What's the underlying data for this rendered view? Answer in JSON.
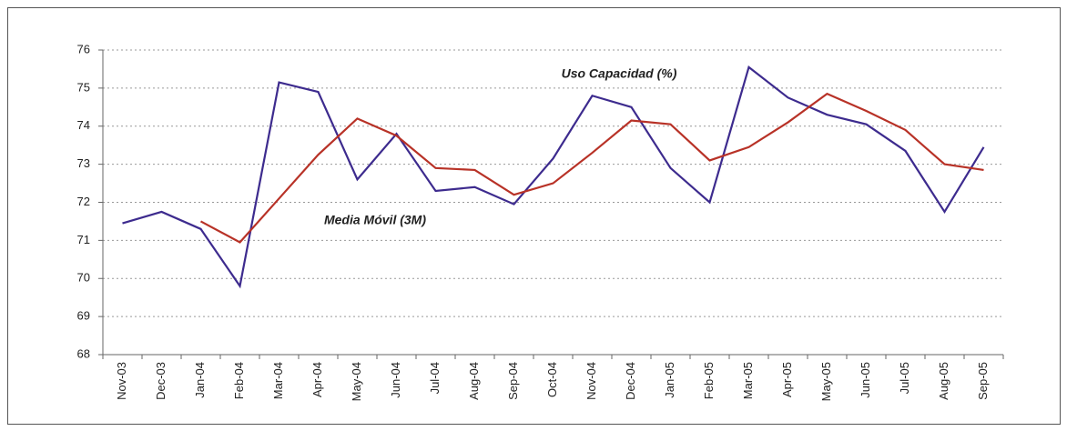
{
  "chart_data": {
    "type": "line",
    "categories": [
      "Nov-03",
      "Dec-03",
      "Jan-04",
      "Feb-04",
      "Mar-04",
      "Apr-04",
      "May-04",
      "Jun-04",
      "Jul-04",
      "Aug-04",
      "Sep-04",
      "Oct-04",
      "Nov-04",
      "Dec-04",
      "Jan-05",
      "Feb-05",
      "Mar-05",
      "Apr-05",
      "May-05",
      "Jun-05",
      "Jul-05",
      "Aug-05",
      "Sep-05"
    ],
    "series": [
      {
        "name": "Uso Capacidad (%)",
        "color": "#3d2b8e",
        "values": [
          71.45,
          71.75,
          71.3,
          69.8,
          75.15,
          74.9,
          72.6,
          73.8,
          72.3,
          72.4,
          71.95,
          73.15,
          74.8,
          74.5,
          72.9,
          72.0,
          75.55,
          74.75,
          74.3,
          74.05,
          73.35,
          71.75,
          73.45
        ]
      },
      {
        "name": "Media Móvil (3M)",
        "color": "#b83227",
        "values": [
          null,
          null,
          71.5,
          70.95,
          72.1,
          73.25,
          74.2,
          73.75,
          72.9,
          72.85,
          72.2,
          72.5,
          73.3,
          74.15,
          74.05,
          73.1,
          73.45,
          74.1,
          74.85,
          74.4,
          73.9,
          73.0,
          72.85
        ]
      }
    ],
    "ylim": [
      68,
      76
    ],
    "yticks": [
      68,
      69,
      70,
      71,
      72,
      73,
      74,
      75,
      76
    ],
    "grid": true
  }
}
